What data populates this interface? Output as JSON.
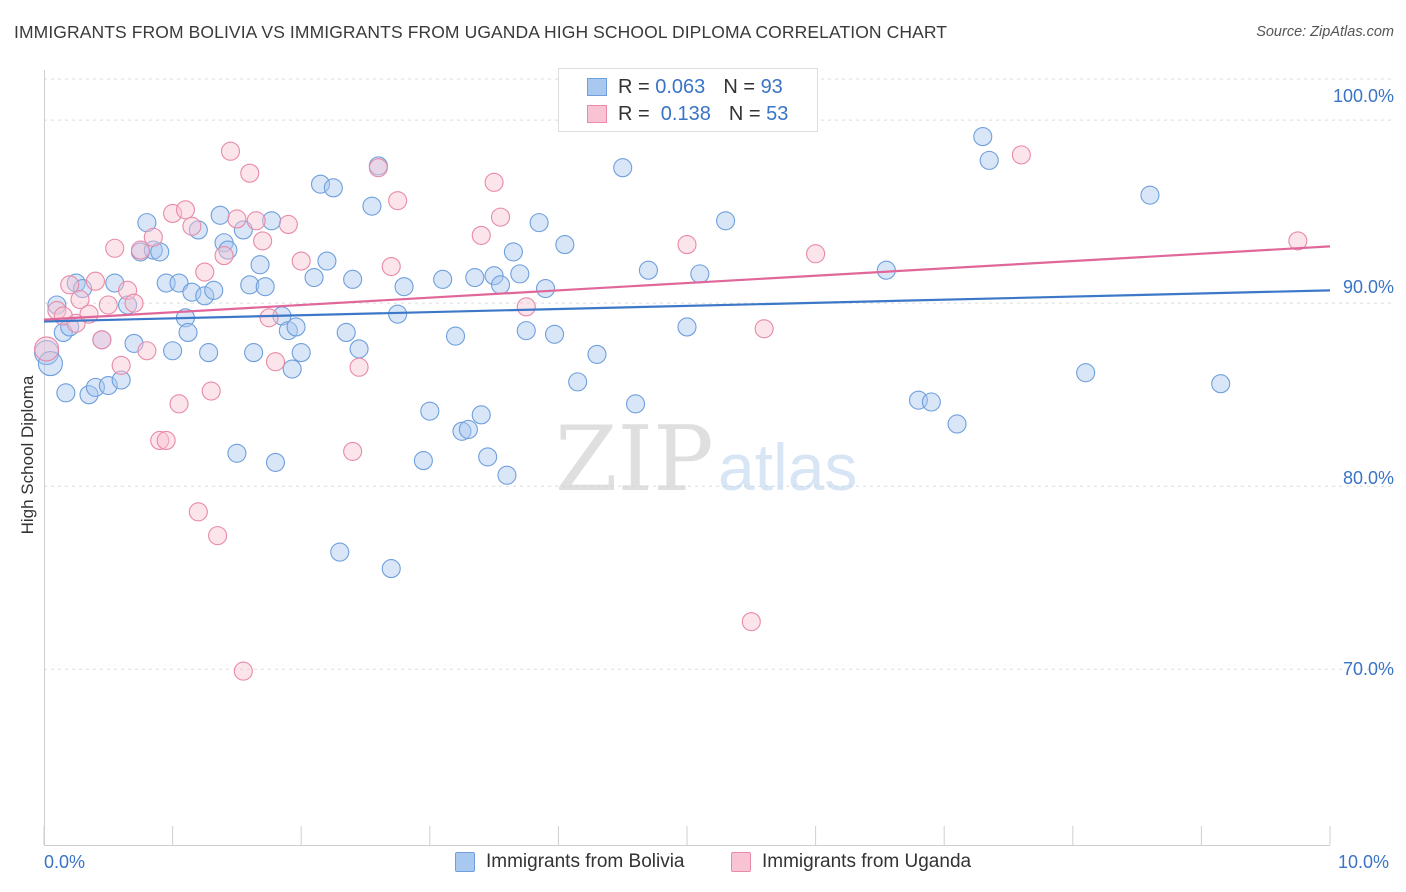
{
  "title": "IMMIGRANTS FROM BOLIVIA VS IMMIGRANTS FROM UGANDA HIGH SCHOOL DIPLOMA CORRELATION CHART",
  "source": "Source: ZipAtlas.com",
  "watermark": {
    "zip": "ZIP",
    "atlas": "atlas"
  },
  "stats": [
    {
      "r_label": "R = ",
      "r_value": "0.063",
      "n_label": "N = ",
      "n_value": "93",
      "color": "#a9c8f0",
      "border": "#6f9fdc"
    },
    {
      "r_label": "R = ",
      "r_value": " 0.138",
      "n_label": "N = ",
      "n_value": "53",
      "color": "#f8c3d3",
      "border": "#e88aa8"
    }
  ],
  "chart_data": {
    "type": "scatter",
    "title": "IMMIGRANTS FROM BOLIVIA VS IMMIGRANTS FROM UGANDA HIGH SCHOOL DIPLOMA CORRELATION CHART",
    "xlabel": "",
    "ylabel": "High School Diploma",
    "xlim": [
      0,
      10
    ],
    "ylim": [
      60.4,
      102.3
    ],
    "x_tick_labels": [
      "0.0%",
      "10.0%"
    ],
    "y_ticks": [
      70,
      80,
      90,
      100
    ],
    "y_tick_labels": [
      "70.0%",
      "80.0%",
      "90.0%",
      "100.0%"
    ],
    "grid": true,
    "legend_position": "bottom",
    "series": [
      {
        "name": "Immigrants from Bolivia",
        "color": "#a9c8f0",
        "stroke": "#6f9fdc",
        "line_color": "#3d78c8",
        "trend": [
          [
            0,
            89.0
          ],
          [
            10,
            90.7
          ]
        ],
        "points": [
          [
            0.02,
            87.3
          ],
          [
            0.05,
            86.7
          ],
          [
            0.1,
            89.9
          ],
          [
            0.15,
            88.4
          ],
          [
            0.17,
            85.1
          ],
          [
            0.2,
            88.7
          ],
          [
            0.25,
            91.1
          ],
          [
            0.3,
            90.8
          ],
          [
            0.35,
            85.0
          ],
          [
            0.4,
            85.4
          ],
          [
            0.45,
            88.0
          ],
          [
            0.5,
            85.5
          ],
          [
            0.55,
            91.1
          ],
          [
            0.6,
            85.8
          ],
          [
            0.65,
            89.9
          ],
          [
            0.7,
            87.8
          ],
          [
            0.75,
            92.8
          ],
          [
            0.8,
            94.4
          ],
          [
            0.85,
            92.9
          ],
          [
            0.9,
            92.8
          ],
          [
            0.95,
            91.1
          ],
          [
            1.0,
            87.4
          ],
          [
            1.05,
            91.1
          ],
          [
            1.1,
            89.2
          ],
          [
            1.12,
            88.4
          ],
          [
            1.15,
            90.6
          ],
          [
            1.2,
            94.0
          ],
          [
            1.25,
            90.4
          ],
          [
            1.28,
            87.3
          ],
          [
            1.32,
            90.7
          ],
          [
            1.37,
            94.8
          ],
          [
            1.4,
            93.3
          ],
          [
            1.43,
            92.9
          ],
          [
            1.5,
            81.8
          ],
          [
            1.55,
            94.0
          ],
          [
            1.6,
            91.0
          ],
          [
            1.63,
            87.3
          ],
          [
            1.68,
            92.1
          ],
          [
            1.72,
            90.9
          ],
          [
            1.77,
            94.5
          ],
          [
            1.8,
            81.3
          ],
          [
            1.85,
            89.3
          ],
          [
            1.9,
            88.5
          ],
          [
            1.93,
            86.4
          ],
          [
            1.96,
            88.7
          ],
          [
            2.0,
            87.3
          ],
          [
            2.1,
            91.4
          ],
          [
            2.15,
            96.5
          ],
          [
            2.2,
            92.3
          ],
          [
            2.25,
            96.3
          ],
          [
            2.3,
            76.4
          ],
          [
            2.35,
            88.4
          ],
          [
            2.4,
            91.3
          ],
          [
            2.45,
            87.5
          ],
          [
            2.55,
            95.3
          ],
          [
            2.6,
            97.5
          ],
          [
            2.7,
            75.5
          ],
          [
            2.75,
            89.4
          ],
          [
            2.8,
            90.9
          ],
          [
            2.95,
            81.4
          ],
          [
            3.0,
            84.1
          ],
          [
            3.1,
            91.3
          ],
          [
            3.2,
            88.2
          ],
          [
            3.25,
            83.0
          ],
          [
            3.3,
            83.1
          ],
          [
            3.35,
            91.4
          ],
          [
            3.4,
            83.9
          ],
          [
            3.45,
            81.6
          ],
          [
            3.5,
            91.5
          ],
          [
            3.55,
            91.0
          ],
          [
            3.6,
            80.6
          ],
          [
            3.65,
            92.8
          ],
          [
            3.7,
            91.6
          ],
          [
            3.75,
            88.5
          ],
          [
            3.85,
            94.4
          ],
          [
            3.9,
            90.8
          ],
          [
            3.97,
            88.3
          ],
          [
            4.05,
            93.2
          ],
          [
            4.15,
            85.7
          ],
          [
            4.3,
            87.2
          ],
          [
            4.5,
            97.4
          ],
          [
            4.6,
            84.5
          ],
          [
            4.7,
            91.8
          ],
          [
            5.0,
            88.7
          ],
          [
            5.1,
            91.6
          ],
          [
            5.3,
            94.5
          ],
          [
            6.55,
            91.8
          ],
          [
            6.8,
            84.7
          ],
          [
            6.9,
            84.6
          ],
          [
            7.1,
            83.4
          ],
          [
            7.3,
            99.1
          ],
          [
            7.35,
            97.8
          ],
          [
            8.1,
            86.2
          ],
          [
            8.6,
            95.9
          ],
          [
            9.15,
            85.6
          ]
        ]
      },
      {
        "name": "Immigrants from Uganda",
        "color": "#f8c3d3",
        "stroke": "#e88aa8",
        "line_color": "#e0679a",
        "trend": [
          [
            0,
            89.1
          ],
          [
            10,
            93.1
          ]
        ],
        "points": [
          [
            0.02,
            87.5
          ],
          [
            0.1,
            89.6
          ],
          [
            0.15,
            89.3
          ],
          [
            0.2,
            91.0
          ],
          [
            0.25,
            88.9
          ],
          [
            0.28,
            90.2
          ],
          [
            0.35,
            89.4
          ],
          [
            0.4,
            91.2
          ],
          [
            0.45,
            88.0
          ],
          [
            0.5,
            89.9
          ],
          [
            0.55,
            93.0
          ],
          [
            0.6,
            86.6
          ],
          [
            0.65,
            90.7
          ],
          [
            0.7,
            90.0
          ],
          [
            0.75,
            92.9
          ],
          [
            0.8,
            87.4
          ],
          [
            0.85,
            93.6
          ],
          [
            0.9,
            82.5
          ],
          [
            0.95,
            82.5
          ],
          [
            1.0,
            94.9
          ],
          [
            1.05,
            84.5
          ],
          [
            1.1,
            95.1
          ],
          [
            1.15,
            94.2
          ],
          [
            1.2,
            78.6
          ],
          [
            1.25,
            91.7
          ],
          [
            1.3,
            85.2
          ],
          [
            1.35,
            77.3
          ],
          [
            1.4,
            92.6
          ],
          [
            1.45,
            98.3
          ],
          [
            1.5,
            94.6
          ],
          [
            1.55,
            69.9
          ],
          [
            1.6,
            97.1
          ],
          [
            1.65,
            94.5
          ],
          [
            1.7,
            93.4
          ],
          [
            1.75,
            89.2
          ],
          [
            1.8,
            86.8
          ],
          [
            1.9,
            94.3
          ],
          [
            2.0,
            92.3
          ],
          [
            2.4,
            81.9
          ],
          [
            2.45,
            86.5
          ],
          [
            2.6,
            97.4
          ],
          [
            2.7,
            92.0
          ],
          [
            2.75,
            95.6
          ],
          [
            3.4,
            93.7
          ],
          [
            3.5,
            96.6
          ],
          [
            3.55,
            94.7
          ],
          [
            3.75,
            89.8
          ],
          [
            5.0,
            93.2
          ],
          [
            5.5,
            72.6
          ],
          [
            5.6,
            88.6
          ],
          [
            6.0,
            92.7
          ],
          [
            7.6,
            98.1
          ],
          [
            9.75,
            93.4
          ]
        ]
      }
    ]
  }
}
